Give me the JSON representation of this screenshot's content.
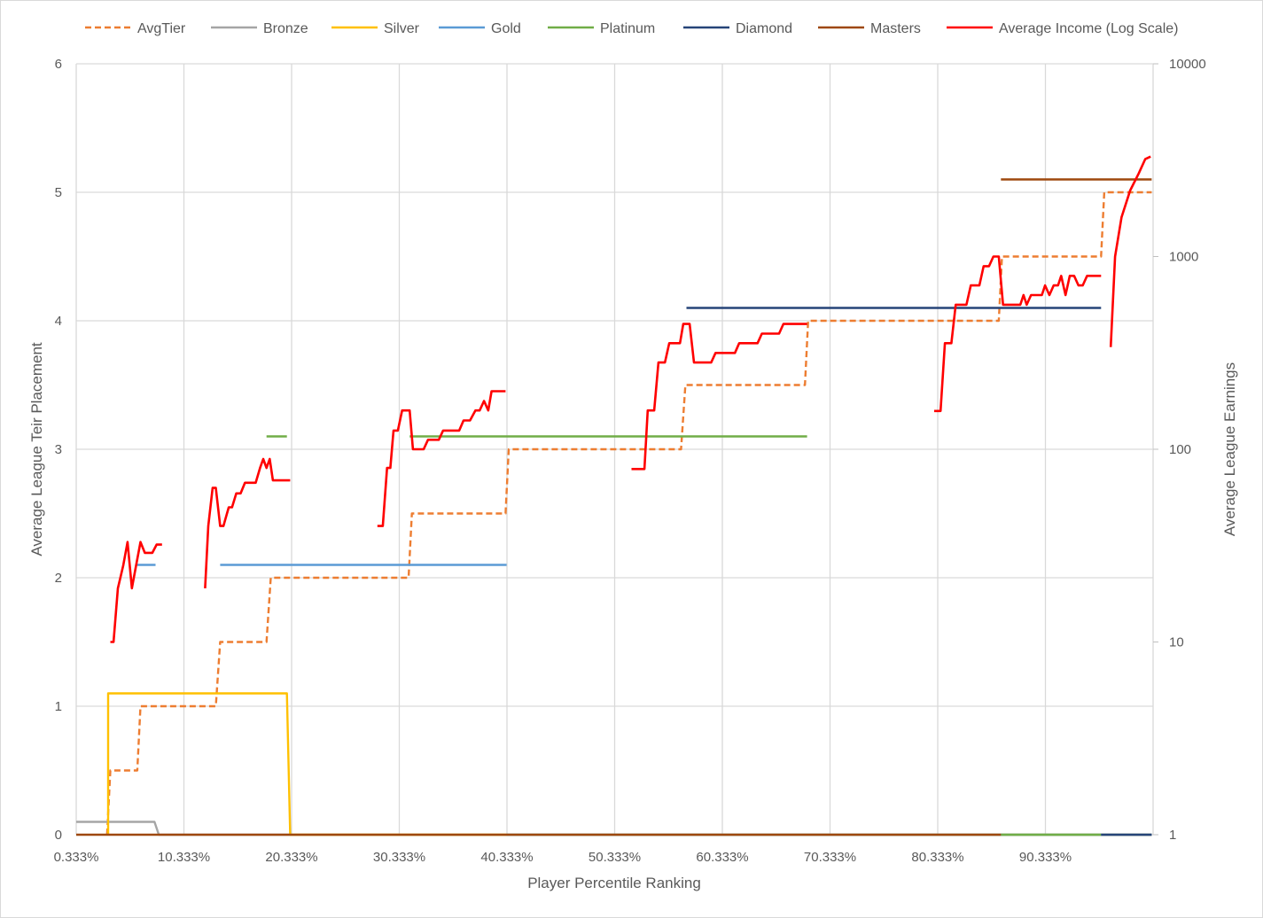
{
  "chart_data": {
    "type": "line",
    "xlabel": "Player Percentile Ranking",
    "ylabel": "Average League Teir Placement",
    "y2label": "Average League Earnings",
    "x_tick_labels": [
      "0.333%",
      "10.333%",
      "20.333%",
      "30.333%",
      "40.333%",
      "50.333%",
      "60.333%",
      "70.333%",
      "80.333%",
      "90.333%"
    ],
    "x_ticks": [
      0.333,
      10.333,
      20.333,
      30.333,
      40.333,
      50.333,
      60.333,
      70.333,
      80.333,
      90.333
    ],
    "xlim": [
      0.333,
      100.333
    ],
    "ylim": [
      0,
      6
    ],
    "y_ticks": [
      "0",
      "1",
      "2",
      "3",
      "4",
      "5",
      "6"
    ],
    "y2lim": [
      1,
      10000
    ],
    "y2_scale": "log",
    "y2_ticks": [
      "1",
      "10",
      "100",
      "1000",
      "10000"
    ],
    "grid": "vertical",
    "legend_position": "top",
    "series": [
      {
        "name": "AvgTier",
        "axis": "left",
        "color": "#ED7D31",
        "dash": true,
        "points": [
          [
            3.2,
            0
          ],
          [
            3.5,
            0.5
          ],
          [
            6,
            0.5
          ],
          [
            6.3,
            1
          ],
          [
            13.3,
            1
          ],
          [
            13.7,
            1.5
          ],
          [
            18,
            1.5
          ],
          [
            18.4,
            2
          ],
          [
            31.2,
            2
          ],
          [
            31.5,
            2.5
          ],
          [
            40.2,
            2.5
          ],
          [
            40.5,
            3
          ],
          [
            56.5,
            3
          ],
          [
            56.9,
            3.5
          ],
          [
            68,
            3.5
          ],
          [
            68.3,
            4
          ],
          [
            86,
            4
          ],
          [
            86.3,
            4.5
          ],
          [
            95.5,
            4.5
          ],
          [
            95.8,
            5
          ],
          [
            100.2,
            5
          ]
        ]
      },
      {
        "name": "Bronze",
        "axis": "left",
        "color": "#A5A5A5",
        "points": [
          [
            0.333,
            0.1
          ],
          [
            7.6,
            0.1
          ],
          [
            8,
            0
          ],
          [
            100.2,
            0
          ]
        ]
      },
      {
        "name": "Silver",
        "axis": "left",
        "color": "#FFC000",
        "points": [
          [
            3.3,
            0
          ],
          [
            3.3,
            1.1
          ],
          [
            19.9,
            1.1
          ],
          [
            20.2,
            0
          ],
          [
            100.2,
            0
          ]
        ]
      },
      {
        "name": "Gold",
        "axis": "left",
        "color": "#5B9BD5",
        "segments": [
          [
            [
              6,
              2.1
            ],
            [
              7.7,
              2.1
            ]
          ],
          [
            [
              13.7,
              2.1
            ],
            [
              40.3,
              2.1
            ]
          ],
          [
            [
              40.3,
              0
            ],
            [
              100.2,
              0
            ]
          ]
        ]
      },
      {
        "name": "Platinum",
        "axis": "left",
        "color": "#70AD47",
        "segments": [
          [
            [
              18,
              3.1
            ],
            [
              19.9,
              3.1
            ]
          ],
          [
            [
              31.3,
              3.1
            ],
            [
              68.2,
              3.1
            ]
          ],
          [
            [
              86.2,
              0
            ],
            [
              95.5,
              0
            ]
          ]
        ]
      },
      {
        "name": "Diamond",
        "axis": "left",
        "color": "#264478",
        "segments": [
          [
            [
              57,
              4.1
            ],
            [
              95.5,
              4.1
            ]
          ],
          [
            [
              95.5,
              0
            ],
            [
              100.2,
              0
            ]
          ]
        ]
      },
      {
        "name": "Masters",
        "axis": "left",
        "color": "#9E480E",
        "segments": [
          [
            [
              0.333,
              0
            ],
            [
              86.2,
              0
            ]
          ],
          [
            [
              86.2,
              5.1
            ],
            [
              100.2,
              5.1
            ]
          ]
        ]
      },
      {
        "name": "Average Income (Log Scale)",
        "axis": "right",
        "color": "#FF0000",
        "segments": [
          [
            [
              3.5,
              10
            ],
            [
              3.8,
              10
            ],
            [
              4.2,
              19
            ],
            [
              4.7,
              25
            ],
            [
              5.1,
              33
            ],
            [
              5.5,
              19
            ],
            [
              5.9,
              25
            ],
            [
              6.3,
              33
            ],
            [
              6.7,
              29
            ],
            [
              7.4,
              29
            ],
            [
              7.8,
              32
            ],
            [
              8.3,
              32
            ]
          ],
          [
            [
              12.3,
              19
            ],
            [
              12.6,
              40
            ],
            [
              13,
              63
            ],
            [
              13.3,
              63
            ],
            [
              13.7,
              40
            ],
            [
              14,
              40
            ],
            [
              14.5,
              50
            ],
            [
              14.8,
              50
            ],
            [
              15.2,
              59
            ],
            [
              15.6,
              59
            ],
            [
              16,
              67
            ],
            [
              17,
              67
            ],
            [
              17.4,
              80
            ],
            [
              17.7,
              89
            ],
            [
              18,
              80
            ],
            [
              18.3,
              89
            ],
            [
              18.6,
              69
            ],
            [
              20.2,
              69
            ]
          ],
          [
            [
              28.3,
              40
            ],
            [
              28.8,
              40
            ],
            [
              29.2,
              80
            ],
            [
              29.5,
              80
            ],
            [
              29.8,
              125
            ],
            [
              30.2,
              125
            ],
            [
              30.6,
              159
            ],
            [
              31.3,
              159
            ],
            [
              31.6,
              100
            ],
            [
              32.6,
              100
            ],
            [
              33,
              112
            ],
            [
              34,
              112
            ],
            [
              34.4,
              125
            ],
            [
              35.9,
              125
            ],
            [
              36.3,
              141
            ],
            [
              36.9,
              141
            ],
            [
              37.4,
              159
            ],
            [
              37.8,
              159
            ],
            [
              38.2,
              178
            ],
            [
              38.6,
              159
            ],
            [
              38.9,
              200
            ],
            [
              40.2,
              200
            ]
          ],
          [
            [
              51.9,
              79
            ],
            [
              53.1,
              79
            ],
            [
              53.4,
              159
            ],
            [
              54,
              159
            ],
            [
              54.4,
              282
            ],
            [
              55,
              282
            ],
            [
              55.4,
              355
            ],
            [
              56.4,
              355
            ],
            [
              56.7,
              447
            ],
            [
              57.3,
              447
            ],
            [
              57.7,
              282
            ],
            [
              59.3,
              282
            ],
            [
              59.7,
              316
            ],
            [
              61.5,
              316
            ],
            [
              61.9,
              355
            ],
            [
              63.6,
              355
            ],
            [
              64,
              398
            ],
            [
              65.6,
              398
            ],
            [
              66,
              447
            ],
            [
              68.2,
              447
            ]
          ],
          [
            [
              80,
              158
            ],
            [
              80.6,
              158
            ],
            [
              81,
              355
            ],
            [
              81.6,
              355
            ],
            [
              82,
              562
            ],
            [
              83,
              562
            ],
            [
              83.4,
              708
            ],
            [
              84.2,
              708
            ],
            [
              84.6,
              891
            ],
            [
              85.1,
              891
            ],
            [
              85.5,
              1000
            ],
            [
              86,
              1000
            ],
            [
              86.4,
              562
            ],
            [
              88,
              562
            ],
            [
              88.3,
              631
            ],
            [
              88.6,
              562
            ],
            [
              89,
              631
            ],
            [
              90,
              631
            ],
            [
              90.3,
              708
            ],
            [
              90.7,
              631
            ],
            [
              91.1,
              708
            ],
            [
              91.5,
              708
            ],
            [
              91.8,
              794
            ],
            [
              92.2,
              631
            ],
            [
              92.6,
              794
            ],
            [
              93,
              794
            ],
            [
              93.4,
              708
            ],
            [
              93.8,
              708
            ],
            [
              94.2,
              794
            ],
            [
              95.5,
              794
            ]
          ],
          [
            [
              96.4,
              339
            ],
            [
              96.8,
              1000
            ],
            [
              97.4,
              1600
            ],
            [
              98.2,
              2200
            ],
            [
              99,
              2700
            ],
            [
              99.6,
              3200
            ],
            [
              100.1,
              3300
            ]
          ]
        ]
      }
    ]
  }
}
